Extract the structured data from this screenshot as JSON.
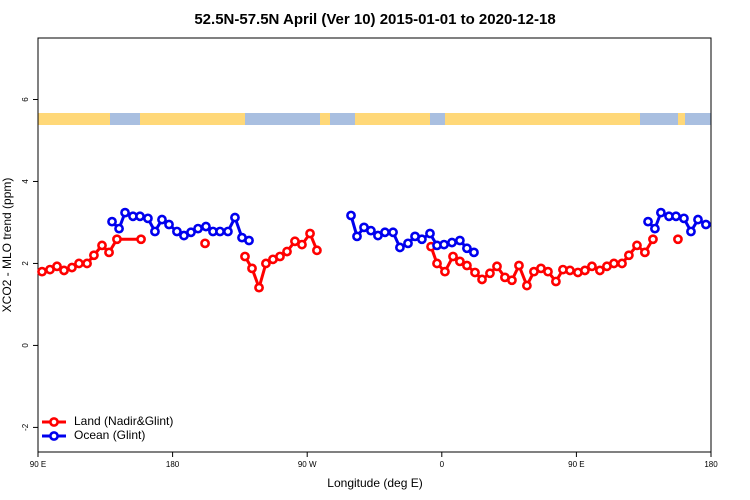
{
  "chart_data": {
    "type": "line",
    "title": "52.5N-57.5N April (Ver 10)   2015-01-01 to 2020-12-18",
    "xlabel": "Longitude (deg E)",
    "ylabel": "XCO2 - MLO trend (ppm)",
    "xlim": [
      90,
      540
    ],
    "ylim": [
      -2.6,
      7.5
    ],
    "xticks": [
      {
        "value": 90,
        "label": "90 E"
      },
      180,
      {
        "value": 270,
        "label": "90 W"
      },
      {
        "value": 360,
        "label": "0"
      },
      {
        "value": 450,
        "label": "90 E"
      },
      {
        "value": 540,
        "label": "180"
      }
    ],
    "yticks": [
      -2,
      0,
      2,
      4,
      6
    ],
    "legend": "bottom-left",
    "series": [
      {
        "name": "Land (Nadir&Glint)",
        "color": "#ff0000",
        "x": [
          92.7,
          98.0,
          102.7,
          107.4,
          112.7,
          117.4,
          122.8,
          127.4,
          132.8,
          137.5,
          142.8,
          158.9,
          null,
          201.7,
          null,
          228.4,
          233.1,
          237.8,
          242.4,
          247.1,
          251.8,
          256.5,
          261.8,
          266.5,
          271.9,
          276.5,
          null,
          352.8,
          356.8,
          362.1,
          367.5,
          372.1,
          376.8,
          382.2,
          386.9,
          392.2,
          396.9,
          402.2,
          406.9,
          411.6,
          416.9,
          421.6,
          426.3,
          431.0,
          436.3,
          441.0,
          445.7,
          451.0,
          455.7,
          460.4,
          465.7,
          470.4,
          475.1,
          480.5,
          485.1,
          490.5,
          495.8,
          501.2,
          null,
          517.9
        ],
        "values": [
          1.8,
          1.85,
          1.93,
          1.83,
          1.9,
          2.0,
          2.0,
          2.2,
          2.44,
          2.27,
          2.59,
          2.59,
          null,
          2.49,
          null,
          2.17,
          1.88,
          1.41,
          2.0,
          2.1,
          2.17,
          2.29,
          2.54,
          2.46,
          2.73,
          2.32,
          null,
          2.41,
          2.0,
          1.8,
          2.17,
          2.05,
          1.95,
          1.78,
          1.61,
          1.76,
          1.93,
          1.66,
          1.59,
          1.95,
          1.46,
          1.8,
          1.88,
          1.8,
          1.56,
          1.85,
          1.83,
          1.78,
          1.83,
          1.93,
          1.83,
          1.93,
          2.0,
          2.0,
          2.2,
          2.44,
          2.27,
          2.59,
          null,
          2.59
        ]
      },
      {
        "name": "Ocean (Glint)",
        "color": "#0000ee",
        "x": [
          139.5,
          144.2,
          148.2,
          153.5,
          158.2,
          163.5,
          168.2,
          172.9,
          177.6,
          182.9,
          187.6,
          192.3,
          197.0,
          202.3,
          207.0,
          211.7,
          217.0,
          221.7,
          226.4,
          231.1,
          null,
          299.3,
          303.3,
          308.0,
          312.6,
          317.3,
          322.0,
          327.4,
          332.0,
          337.4,
          342.1,
          346.7,
          352.1,
          356.8,
          361.5,
          366.8,
          372.1,
          376.8,
          381.5,
          null,
          497.9,
          502.5,
          506.5,
          511.9,
          516.6,
          521.9,
          526.6,
          531.3,
          536.6
        ],
        "values": [
          3.02,
          2.85,
          3.24,
          3.15,
          3.15,
          3.1,
          2.78,
          3.07,
          2.95,
          2.78,
          2.68,
          2.76,
          2.85,
          2.9,
          2.78,
          2.78,
          2.78,
          3.12,
          2.63,
          2.56,
          null,
          3.17,
          2.66,
          2.88,
          2.8,
          2.68,
          2.76,
          2.76,
          2.39,
          2.49,
          2.66,
          2.59,
          2.73,
          2.44,
          2.46,
          2.51,
          2.56,
          2.37,
          2.27,
          null,
          3.02,
          2.85,
          3.24,
          3.15,
          3.15,
          3.1,
          2.78,
          3.07,
          2.95
        ]
      }
    ]
  }
}
